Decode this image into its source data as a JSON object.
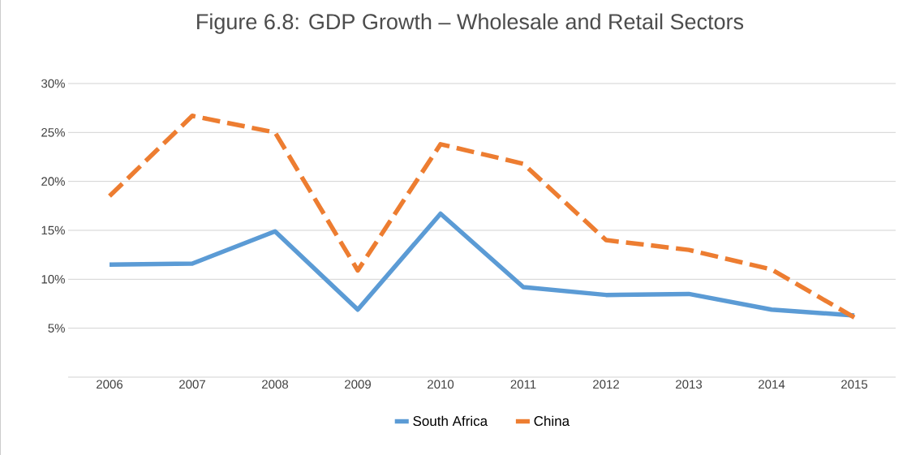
{
  "chart_data": {
    "type": "line",
    "title": "Figure 6.8: GDP Growth – Wholesale and Retail Sectors",
    "categories": [
      "2006",
      "2007",
      "2008",
      "2009",
      "2010",
      "2011",
      "2012",
      "2013",
      "2014",
      "2015"
    ],
    "series": [
      {
        "name": "South Africa",
        "color": "#5b9bd5",
        "line_style": "solid",
        "values": [
          11.5,
          11.6,
          14.9,
          6.9,
          16.7,
          9.2,
          8.4,
          8.5,
          6.9,
          6.3
        ]
      },
      {
        "name": "China",
        "color": "#ed7d31",
        "line_style": "dashed",
        "values": [
          18.5,
          26.7,
          25.0,
          10.9,
          23.8,
          21.8,
          14.0,
          13.0,
          11.0,
          6.1
        ]
      }
    ],
    "ylim": [
      0,
      30
    ],
    "yticks": [
      {
        "value": 0,
        "label": null
      },
      {
        "value": 5,
        "label": "5%"
      },
      {
        "value": 10,
        "label": "10%"
      },
      {
        "value": 15,
        "label": "15%"
      },
      {
        "value": 20,
        "label": "20%"
      },
      {
        "value": 25,
        "label": "25%"
      },
      {
        "value": 30,
        "label": "30%"
      }
    ],
    "grid": "y",
    "legend": "bottom",
    "marker": "none"
  }
}
